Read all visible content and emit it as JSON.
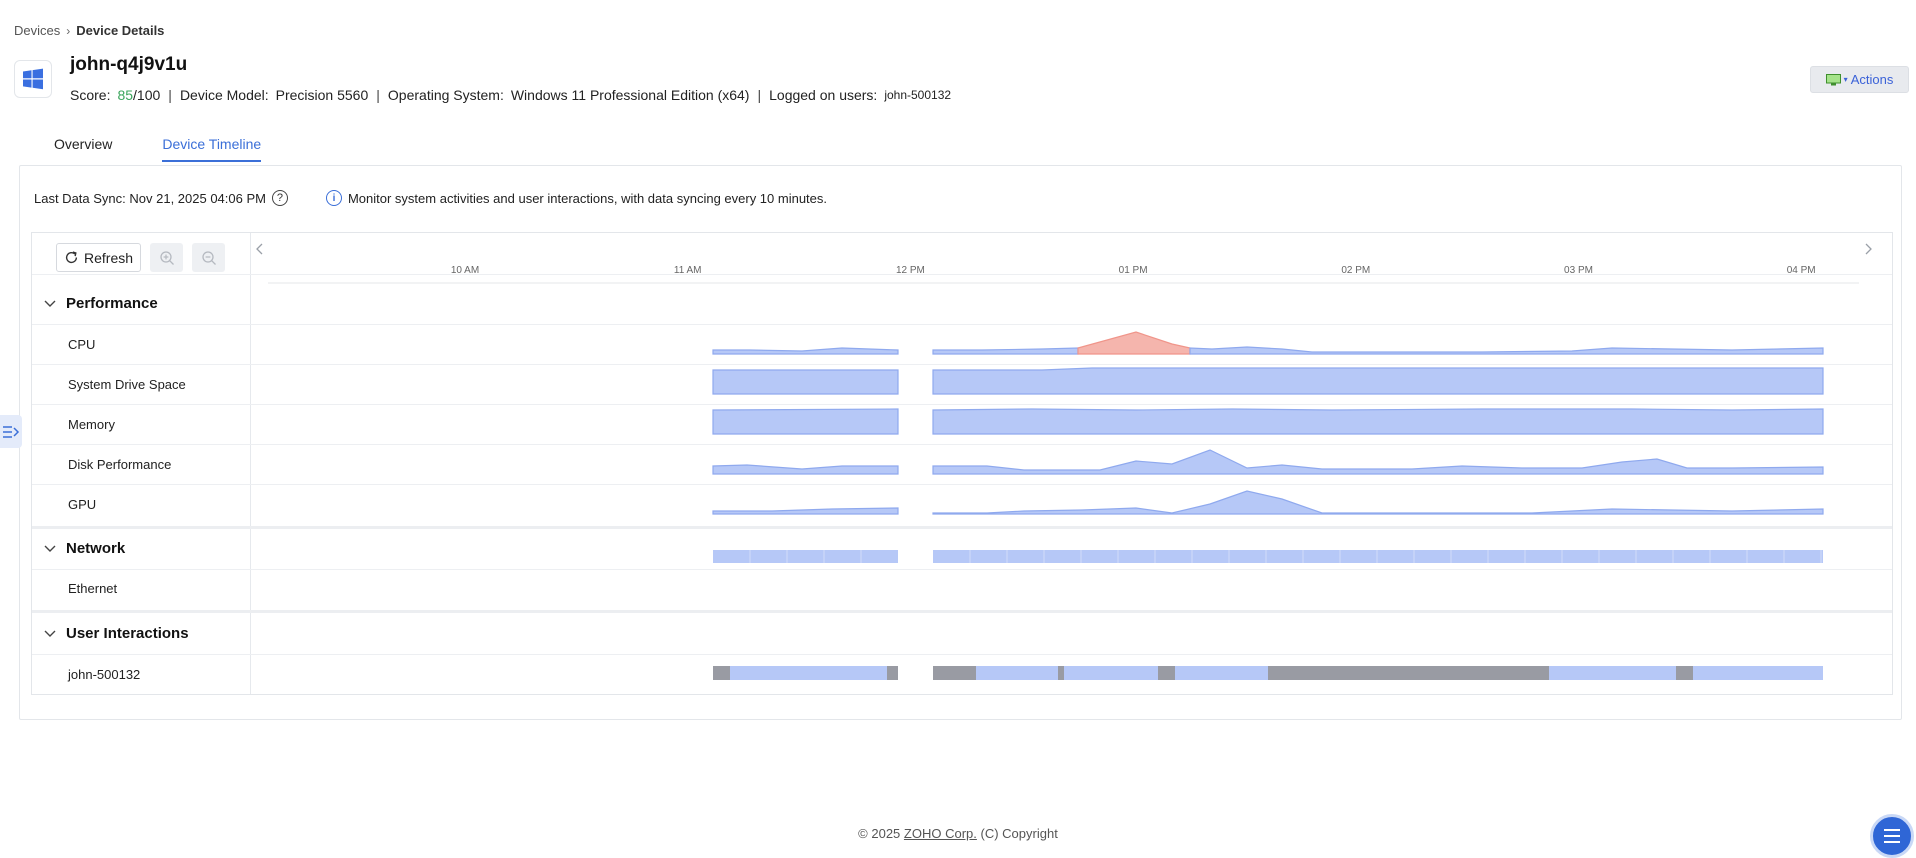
{
  "breadcrumb": {
    "parent": "Devices",
    "separator": "›",
    "current": "Device Details"
  },
  "device": {
    "name": "john-q4j9v1u",
    "score_label": "Score:",
    "score_value": "85",
    "score_max": "/100",
    "model_label": "Device Model:",
    "model_value": "Precision 5560",
    "os_label": "Operating System:",
    "os_value": "Windows 11 Professional Edition (x64)",
    "users_label": "Logged on users:",
    "users_value": "john-500132",
    "separator": "|"
  },
  "actions": {
    "label": "Actions",
    "caret": "▾"
  },
  "tabs": [
    {
      "label": "Overview",
      "active": false
    },
    {
      "label": "Device Timeline",
      "active": true
    }
  ],
  "sync": {
    "label": "Last Data Sync: Nov 21, 2025 04:06 PM",
    "help": "?",
    "info_glyph": "i",
    "info_text": "Monitor system activities and user interactions, with data syncing every 10 minutes."
  },
  "toolbar": {
    "refresh_label": "Refresh"
  },
  "timeline": {
    "time_labels": [
      "10 AM",
      "11 AM",
      "12 PM",
      "01 PM",
      "02 PM",
      "03 PM",
      "04 PM"
    ],
    "sections": [
      {
        "title": "Performance",
        "rows": [
          "CPU",
          "System Drive Space",
          "Memory",
          "Disk Performance",
          "GPU"
        ]
      },
      {
        "title": "Network",
        "rows": [
          "Ethernet"
        ]
      },
      {
        "title": "User Interactions",
        "rows": [
          "john-500132"
        ]
      }
    ],
    "colors": {
      "normal": "#b6c8f7",
      "normal_stroke": "#8fa9ee",
      "alert": "#f5b5ad",
      "idle": "#999ba3",
      "axis": "#666666"
    }
  },
  "footer": {
    "prefix": "© 2025",
    "company": "ZOHO Corp.",
    "suffix": "(C) Copyright"
  }
}
